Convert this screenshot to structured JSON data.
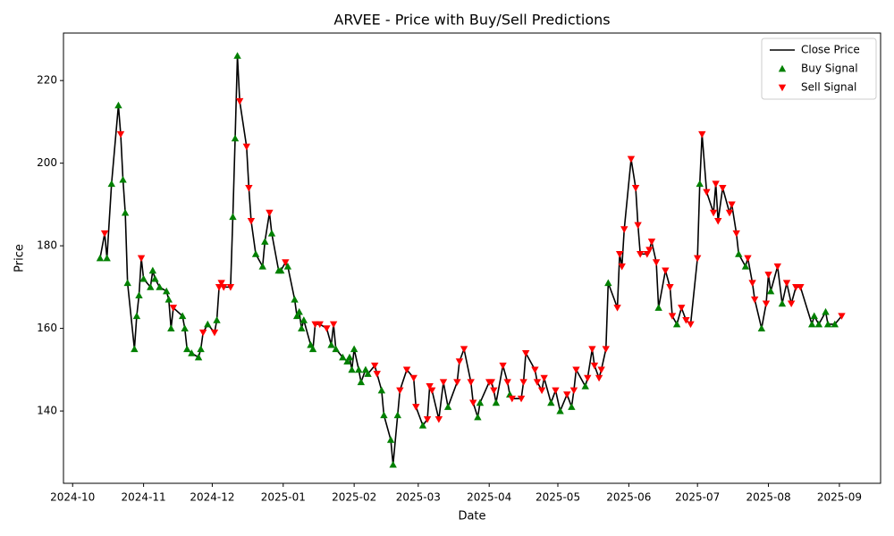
{
  "chart_data": {
    "type": "line",
    "title": "ARVEE - Price with Buy/Sell Predictions",
    "x_label": "Date",
    "y_label": "Price",
    "x": [
      "2024-10-13",
      "2024-10-15",
      "2024-10-16",
      "2024-10-18",
      "2024-10-21",
      "2024-10-22",
      "2024-10-23",
      "2024-10-24",
      "2024-10-25",
      "2024-10-28",
      "2024-10-29",
      "2024-10-30",
      "2024-10-31",
      "2024-11-01",
      "2024-11-04",
      "2024-11-05",
      "2024-11-06",
      "2024-11-08",
      "2024-11-11",
      "2024-11-12",
      "2024-11-13",
      "2024-11-14",
      "2024-11-18",
      "2024-11-19",
      "2024-11-20",
      "2024-11-22",
      "2024-11-25",
      "2024-11-26",
      "2024-11-27",
      "2024-11-29",
      "2024-12-02",
      "2024-12-03",
      "2024-12-04",
      "2024-12-05",
      "2024-12-06",
      "2024-12-09",
      "2024-12-10",
      "2024-12-11",
      "2024-12-12",
      "2024-12-13",
      "2024-12-16",
      "2024-12-17",
      "2024-12-18",
      "2024-12-20",
      "2024-12-23",
      "2024-12-24",
      "2024-12-26",
      "2024-12-27",
      "2024-12-30",
      "2024-12-31",
      "2025-01-02",
      "2025-01-03",
      "2025-01-06",
      "2025-01-07",
      "2025-01-08",
      "2025-01-09",
      "2025-01-10",
      "2025-01-13",
      "2025-01-14",
      "2025-01-15",
      "2025-01-17",
      "2025-01-20",
      "2025-01-22",
      "2025-01-23",
      "2025-01-24",
      "2025-01-27",
      "2025-01-29",
      "2025-01-30",
      "2025-01-31",
      "2025-02-01",
      "2025-02-03",
      "2025-02-04",
      "2025-02-06",
      "2025-02-07",
      "2025-02-10",
      "2025-02-11",
      "2025-02-13",
      "2025-02-14",
      "2025-02-17",
      "2025-02-18",
      "2025-02-20",
      "2025-02-21",
      "2025-02-24",
      "2025-02-27",
      "2025-02-28",
      "2025-03-03",
      "2025-03-05",
      "2025-03-06",
      "2025-03-07",
      "2025-03-10",
      "2025-03-12",
      "2025-03-14",
      "2025-03-18",
      "2025-03-19",
      "2025-03-21",
      "2025-03-24",
      "2025-03-25",
      "2025-03-27",
      "2025-03-28",
      "2025-04-01",
      "2025-04-02",
      "2025-04-03",
      "2025-04-04",
      "2025-04-07",
      "2025-04-09",
      "2025-04-10",
      "2025-04-11",
      "2025-04-15",
      "2025-04-16",
      "2025-04-17",
      "2025-04-21",
      "2025-04-22",
      "2025-04-24",
      "2025-04-25",
      "2025-04-28",
      "2025-04-30",
      "2025-05-02",
      "2025-05-05",
      "2025-05-07",
      "2025-05-08",
      "2025-05-09",
      "2025-05-13",
      "2025-05-14",
      "2025-05-16",
      "2025-05-17",
      "2025-05-19",
      "2025-05-20",
      "2025-05-22",
      "2025-05-23",
      "2025-05-27",
      "2025-05-28",
      "2025-05-29",
      "2025-05-30",
      "2025-06-02",
      "2025-06-04",
      "2025-06-05",
      "2025-06-06",
      "2025-06-09",
      "2025-06-10",
      "2025-06-11",
      "2025-06-13",
      "2025-06-14",
      "2025-06-17",
      "2025-06-19",
      "2025-06-20",
      "2025-06-22",
      "2025-06-24",
      "2025-06-26",
      "2025-06-28",
      "2025-07-01",
      "2025-07-02",
      "2025-07-03",
      "2025-07-05",
      "2025-07-08",
      "2025-07-09",
      "2025-07-10",
      "2025-07-12",
      "2025-07-15",
      "2025-07-16",
      "2025-07-18",
      "2025-07-19",
      "2025-07-22",
      "2025-07-23",
      "2025-07-25",
      "2025-07-26",
      "2025-07-29",
      "2025-07-31",
      "2025-08-01",
      "2025-08-02",
      "2025-08-05",
      "2025-08-07",
      "2025-08-09",
      "2025-08-11",
      "2025-08-13",
      "2025-08-15",
      "2025-08-20",
      "2025-08-21",
      "2025-08-23",
      "2025-08-26",
      "2025-08-27",
      "2025-08-30",
      "2025-09-02"
    ],
    "series": [
      {
        "name": "Close Price",
        "color": "#000000",
        "marker": "line",
        "values": [
          177,
          183,
          177,
          195,
          214,
          207,
          196,
          188,
          171,
          155,
          163,
          168,
          177,
          172,
          170,
          174,
          172,
          170,
          169,
          167,
          160,
          165,
          163,
          160,
          155,
          154,
          153,
          155,
          159,
          161,
          159,
          162,
          170,
          171,
          170,
          170,
          187,
          206,
          226,
          215,
          204,
          194,
          186,
          178,
          175,
          181,
          188,
          183,
          174,
          174,
          176,
          175,
          167,
          163,
          164,
          160,
          162,
          156,
          155,
          161,
          161,
          160,
          156,
          161,
          155,
          153,
          152,
          153,
          150,
          155,
          150,
          147,
          150,
          149,
          151,
          149,
          145,
          139,
          133,
          127,
          139,
          145,
          150,
          148,
          141,
          136.5,
          138,
          146,
          145,
          138,
          147,
          141,
          147,
          152,
          155,
          147,
          142,
          138.5,
          142,
          147,
          147,
          145,
          142,
          151,
          147,
          144,
          143,
          143,
          147,
          154,
          150,
          147,
          145,
          148,
          142,
          145,
          140,
          144,
          141,
          145,
          150,
          146,
          148,
          155,
          151,
          148,
          150,
          155,
          171,
          165,
          178,
          175,
          184,
          201,
          194,
          185,
          178,
          178,
          179,
          181,
          176,
          165,
          174,
          170,
          163,
          161,
          165,
          162,
          161,
          177,
          195,
          207,
          193,
          188,
          195,
          186,
          194,
          188,
          190,
          183,
          178,
          175,
          177,
          171,
          167,
          160,
          166,
          173,
          169,
          175,
          166,
          171,
          166,
          170,
          170,
          161,
          163,
          161,
          164,
          161,
          161,
          163
        ]
      },
      {
        "name": "Buy Signal",
        "color": "#008000",
        "marker": "^",
        "values": [
          177,
          null,
          177,
          195,
          214,
          null,
          196,
          188,
          171,
          155,
          163,
          168,
          null,
          172,
          170,
          174,
          172,
          170,
          169,
          167,
          160,
          null,
          163,
          160,
          155,
          154,
          153,
          155,
          null,
          161,
          null,
          162,
          null,
          null,
          null,
          null,
          187,
          206,
          226,
          null,
          null,
          null,
          null,
          178,
          175,
          181,
          null,
          183,
          174,
          174,
          null,
          175,
          167,
          163,
          164,
          160,
          162,
          156,
          155,
          null,
          null,
          null,
          156,
          null,
          155,
          153,
          152,
          153,
          150,
          155,
          150,
          147,
          150,
          149,
          null,
          null,
          145,
          139,
          133,
          127,
          139,
          null,
          null,
          null,
          null,
          136.5,
          null,
          null,
          null,
          null,
          null,
          141,
          null,
          null,
          null,
          null,
          null,
          138.5,
          142,
          null,
          null,
          null,
          142,
          null,
          null,
          144,
          null,
          null,
          null,
          null,
          null,
          null,
          null,
          null,
          142,
          null,
          140,
          null,
          141,
          null,
          null,
          146,
          null,
          null,
          null,
          null,
          null,
          null,
          171,
          null,
          null,
          null,
          null,
          null,
          null,
          null,
          null,
          null,
          null,
          null,
          null,
          165,
          null,
          null,
          null,
          161,
          null,
          null,
          null,
          null,
          195,
          null,
          null,
          null,
          null,
          null,
          null,
          null,
          null,
          null,
          178,
          175,
          null,
          null,
          null,
          160,
          null,
          null,
          169,
          null,
          166,
          null,
          null,
          null,
          null,
          161,
          163,
          161,
          164,
          161,
          161,
          null
        ]
      },
      {
        "name": "Sell Signal",
        "color": "#ff0000",
        "marker": "v",
        "values": [
          null,
          183,
          null,
          null,
          null,
          207,
          null,
          null,
          null,
          null,
          null,
          null,
          177,
          null,
          null,
          null,
          null,
          null,
          null,
          null,
          null,
          165,
          null,
          null,
          null,
          null,
          null,
          null,
          159,
          null,
          159,
          null,
          170,
          171,
          170,
          170,
          null,
          null,
          null,
          215,
          204,
          194,
          186,
          null,
          null,
          null,
          188,
          null,
          null,
          null,
          176,
          null,
          null,
          null,
          null,
          null,
          null,
          null,
          null,
          161,
          161,
          160,
          null,
          161,
          null,
          null,
          null,
          null,
          null,
          null,
          null,
          null,
          null,
          null,
          151,
          149,
          null,
          null,
          null,
          null,
          null,
          145,
          150,
          148,
          141,
          null,
          138,
          146,
          145,
          138,
          147,
          null,
          147,
          152,
          155,
          147,
          142,
          null,
          null,
          147,
          147,
          145,
          null,
          151,
          147,
          null,
          143,
          143,
          147,
          154,
          150,
          147,
          145,
          148,
          null,
          145,
          null,
          144,
          null,
          145,
          150,
          null,
          148,
          155,
          151,
          148,
          150,
          155,
          null,
          165,
          178,
          175,
          184,
          201,
          194,
          185,
          178,
          178,
          179,
          181,
          176,
          null,
          174,
          170,
          163,
          null,
          165,
          162,
          161,
          177,
          null,
          207,
          193,
          188,
          195,
          186,
          194,
          188,
          190,
          183,
          null,
          null,
          177,
          171,
          167,
          null,
          166,
          173,
          null,
          175,
          null,
          171,
          166,
          170,
          170,
          null,
          null,
          null,
          null,
          null,
          null,
          163
        ]
      }
    ],
    "xlim": [
      "2024-09-27",
      "2025-09-19"
    ],
    "xticks": [
      {
        "value": "2024-10-01",
        "label": "2024-10"
      },
      {
        "value": "2024-11-01",
        "label": "2024-11"
      },
      {
        "value": "2024-12-01",
        "label": "2024-12"
      },
      {
        "value": "2025-01-01",
        "label": "2025-01"
      },
      {
        "value": "2025-02-01",
        "label": "2025-02"
      },
      {
        "value": "2025-03-01",
        "label": "2025-03"
      },
      {
        "value": "2025-04-01",
        "label": "2025-04"
      },
      {
        "value": "2025-05-01",
        "label": "2025-05"
      },
      {
        "value": "2025-06-01",
        "label": "2025-06"
      },
      {
        "value": "2025-07-01",
        "label": "2025-07"
      },
      {
        "value": "2025-08-01",
        "label": "2025-08"
      },
      {
        "value": "2025-09-01",
        "label": "2025-09"
      }
    ],
    "ylim": [
      122.5,
      231.5
    ],
    "yticks": [
      140,
      160,
      180,
      200,
      220
    ],
    "grid": false,
    "legend": "upper right"
  }
}
